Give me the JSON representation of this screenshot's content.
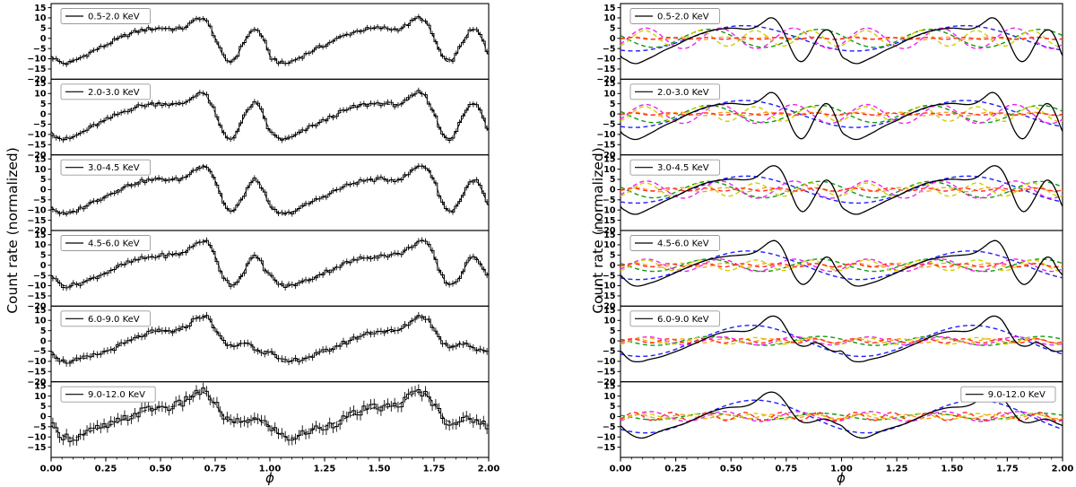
{
  "figure": {
    "ylabel": "Count rate (normalized)",
    "xlabel": "ϕ",
    "x_tick_labels": [
      "0.00",
      "0.25",
      "0.50",
      "0.75",
      "1.00",
      "1.25",
      "1.50",
      "1.75",
      "2.00"
    ],
    "y_tick_values": [
      15,
      10,
      5,
      0,
      -5,
      -10,
      -15
    ],
    "y_bottom_boundary_tick": -20
  },
  "chart_data": {
    "type": "line",
    "title": "",
    "xlabel": "ϕ",
    "ylabel": "Count rate (normalized)",
    "xlim": [
      0,
      2
    ],
    "ylim_per_subplot": [
      -20,
      17
    ],
    "x_ticks": [
      0,
      0.25,
      0.5,
      0.75,
      1,
      1.25,
      1.5,
      1.75,
      2
    ],
    "y_ticks": [
      15,
      10,
      5,
      0,
      -5,
      -10,
      -15,
      -20
    ],
    "grid": false,
    "panels": [
      {
        "name": "pulse-profiles",
        "description": "stepped pulse profile with error bars per phase bin plus dashed best-fit model curve",
        "legend_position": "upper-left"
      },
      {
        "name": "fourier-decomposition",
        "description": "solid black total model plus dashed sinusoidal harmonic components",
        "legend_position": "upper-left (last band upper-right)"
      }
    ],
    "bands": [
      {
        "label": "0.5-2.0 KeV",
        "profile_phi_step": 0.025,
        "profile": [
          -8.5,
          -10.5,
          -12,
          -12.3,
          -11.3,
          -10,
          -8.7,
          -7.2,
          -5.8,
          -4.6,
          -3.4,
          -2,
          -0.6,
          0.6,
          1.7,
          2.7,
          3.5,
          4.1,
          4.5,
          4.8,
          5,
          4.9,
          4.6,
          4.5,
          5,
          6.3,
          8.2,
          10,
          9.3,
          5.8,
          0.3,
          -6,
          -10.5,
          -11.2,
          -8.2,
          -3.2,
          1.4,
          4,
          3.4,
          -1.5
        ],
        "noise_sigma": 1.0,
        "error_bar": 1.3,
        "harmonics": [
          {
            "k": 1,
            "color": "#2020ff",
            "amplitude": 6.2,
            "phase": 0.31
          },
          {
            "k": 2,
            "color": "#119911",
            "amplitude": 4.4,
            "phase": 0.275
          },
          {
            "k": 3,
            "color": "#ee22ee",
            "amplitude": 5.0,
            "phase": 0.032
          },
          {
            "k": 4,
            "color": "#cfcf00",
            "amplitude": 3.8,
            "phase": 0.047
          },
          {
            "k": 5,
            "color": "#ff9f1a",
            "amplitude": 0.6,
            "phase": 0.02
          },
          {
            "k": 6,
            "color": "#ff2a2a",
            "amplitude": 0.45,
            "phase": 0.01
          }
        ]
      },
      {
        "label": "2.0-3.0 KeV",
        "profile_phi_step": 0.025,
        "profile": [
          -8.5,
          -10.8,
          -12.2,
          -12.4,
          -11.4,
          -10,
          -8.6,
          -7,
          -5.6,
          -4.4,
          -3.2,
          -1.8,
          -0.4,
          0.8,
          1.9,
          2.9,
          3.7,
          4.3,
          4.7,
          5,
          5.2,
          5,
          4.7,
          4.6,
          5.1,
          6.4,
          8.4,
          10.4,
          9.8,
          6.2,
          0.5,
          -6.5,
          -11,
          -12,
          -8.5,
          -3,
          2,
          5,
          3.8,
          -1.8
        ],
        "noise_sigma": 1.1,
        "error_bar": 1.4,
        "harmonics": [
          {
            "k": 1,
            "color": "#2020ff",
            "amplitude": 6.6,
            "phase": 0.31
          },
          {
            "k": 2,
            "color": "#119911",
            "amplitude": 4.2,
            "phase": 0.275
          },
          {
            "k": 3,
            "color": "#ee22ee",
            "amplitude": 4.6,
            "phase": 0.032
          },
          {
            "k": 4,
            "color": "#cfcf00",
            "amplitude": 3.6,
            "phase": 0.047
          },
          {
            "k": 5,
            "color": "#ff9f1a",
            "amplitude": 0.8,
            "phase": 0.02
          },
          {
            "k": 6,
            "color": "#ff2a2a",
            "amplitude": 0.5,
            "phase": 0.01
          }
        ]
      },
      {
        "label": "3.0-4.5 KeV",
        "profile_phi_step": 0.025,
        "profile": [
          -8.2,
          -10.4,
          -11.8,
          -12,
          -11,
          -9.7,
          -8.4,
          -7,
          -5.6,
          -4.4,
          -3.2,
          -1.9,
          -0.5,
          0.7,
          1.8,
          2.8,
          3.6,
          4.2,
          4.6,
          4.9,
          5.1,
          5,
          4.8,
          4.9,
          5.4,
          7,
          9.2,
          11.2,
          11.6,
          9.6,
          4.5,
          -2.5,
          -8.5,
          -10.8,
          -8.5,
          -4,
          1,
          4.5,
          3.5,
          -1.6
        ],
        "noise_sigma": 1.0,
        "error_bar": 1.4,
        "harmonics": [
          {
            "k": 1,
            "color": "#2020ff",
            "amplitude": 6.6,
            "phase": 0.32
          },
          {
            "k": 2,
            "color": "#119911",
            "amplitude": 4.0,
            "phase": 0.275
          },
          {
            "k": 3,
            "color": "#ee22ee",
            "amplitude": 4.2,
            "phase": 0.035
          },
          {
            "k": 4,
            "color": "#cfcf00",
            "amplitude": 3.2,
            "phase": 0.05
          },
          {
            "k": 5,
            "color": "#ff9f1a",
            "amplitude": 1.0,
            "phase": 0.02
          },
          {
            "k": 6,
            "color": "#ff2a2a",
            "amplitude": 0.7,
            "phase": 0.01
          }
        ]
      },
      {
        "label": "4.5-6.0 KeV",
        "profile_phi_step": 0.025,
        "profile": [
          -4.8,
          -7.5,
          -9.6,
          -10.2,
          -9.8,
          -9,
          -8.2,
          -7.2,
          -6,
          -4.8,
          -3.6,
          -2.4,
          -1.2,
          0,
          1,
          2,
          2.8,
          3.4,
          3.9,
          4.3,
          4.6,
          4.8,
          5,
          5.3,
          6,
          7.4,
          9.4,
          11.4,
          12,
          9.6,
          4.4,
          -2.6,
          -7.4,
          -9.4,
          -8,
          -4.4,
          0.6,
          3.8,
          3.2,
          -1.4
        ],
        "noise_sigma": 1.1,
        "error_bar": 1.5,
        "harmonics": [
          {
            "k": 1,
            "color": "#2020ff",
            "amplitude": 7.0,
            "phase": 0.33
          },
          {
            "k": 2,
            "color": "#119911",
            "amplitude": 3.0,
            "phase": 0.275
          },
          {
            "k": 3,
            "color": "#ee22ee",
            "amplitude": 3.0,
            "phase": 0.035
          },
          {
            "k": 4,
            "color": "#cfcf00",
            "amplitude": 2.6,
            "phase": 0.05
          },
          {
            "k": 5,
            "color": "#ff9f1a",
            "amplitude": 1.0,
            "phase": 0.02
          },
          {
            "k": 6,
            "color": "#ff2a2a",
            "amplitude": 0.8,
            "phase": 0.01
          }
        ]
      },
      {
        "label": "6.0-9.0 KeV",
        "profile_phi_step": 0.025,
        "profile": [
          -5,
          -7.8,
          -9.8,
          -10.2,
          -10,
          -9.2,
          -8.6,
          -8,
          -7.2,
          -6.2,
          -5.2,
          -4.2,
          -3,
          -1.8,
          -0.6,
          0.6,
          1.8,
          2.9,
          3.8,
          4.4,
          4.7,
          4.7,
          4.6,
          4.8,
          5.8,
          7.6,
          10,
          11.8,
          12,
          10.2,
          6,
          1.4,
          -1.6,
          -2.6,
          -2.2,
          -0.8,
          -1.4,
          -3,
          -4.6,
          -5.2
        ],
        "noise_sigma": 1.2,
        "error_bar": 1.7,
        "harmonics": [
          {
            "k": 1,
            "color": "#2020ff",
            "amplitude": 7.6,
            "phase": 0.34
          },
          {
            "k": 2,
            "color": "#119911",
            "amplitude": 2.2,
            "phase": 0.28
          },
          {
            "k": 3,
            "color": "#ee22ee",
            "amplitude": 2.0,
            "phase": 0.04
          },
          {
            "k": 4,
            "color": "#cfcf00",
            "amplitude": 1.6,
            "phase": 0.05
          },
          {
            "k": 5,
            "color": "#ff9f1a",
            "amplitude": 1.0,
            "phase": 0.02
          },
          {
            "k": 6,
            "color": "#ff2a2a",
            "amplitude": 1.0,
            "phase": 0.01
          }
        ]
      },
      {
        "label": "9.0-12.0 KeV",
        "profile_phi_step": 0.025,
        "profile": [
          -4.5,
          -7,
          -9,
          -10.2,
          -10.5,
          -9.8,
          -8.6,
          -7.4,
          -6.4,
          -5.6,
          -4.8,
          -4,
          -3,
          -1.8,
          -0.6,
          0.6,
          1.8,
          2.8,
          3.6,
          4.2,
          4.5,
          4.6,
          4.8,
          5.4,
          6.6,
          8.6,
          10.8,
          11.9,
          11.6,
          9.6,
          6.2,
          2.2,
          -1.2,
          -2.8,
          -3,
          -2.4,
          -1.6,
          -1.2,
          -2,
          -3.4
        ],
        "noise_sigma": 2.2,
        "error_bar": 2.6,
        "harmonics": [
          {
            "k": 1,
            "color": "#2020ff",
            "amplitude": 8.0,
            "phase": 0.36
          },
          {
            "k": 2,
            "color": "#119911",
            "amplitude": 1.6,
            "phase": 0.28
          },
          {
            "k": 3,
            "color": "#ee22ee",
            "amplitude": 2.4,
            "phase": 0.05
          },
          {
            "k": 4,
            "color": "#cfcf00",
            "amplitude": 1.5,
            "phase": 0.05
          },
          {
            "k": 5,
            "color": "#ff9f1a",
            "amplitude": 1.0,
            "phase": 0.03
          },
          {
            "k": 6,
            "color": "#ff2a2a",
            "amplitude": 2.0,
            "phase": 0.02
          }
        ]
      }
    ]
  }
}
